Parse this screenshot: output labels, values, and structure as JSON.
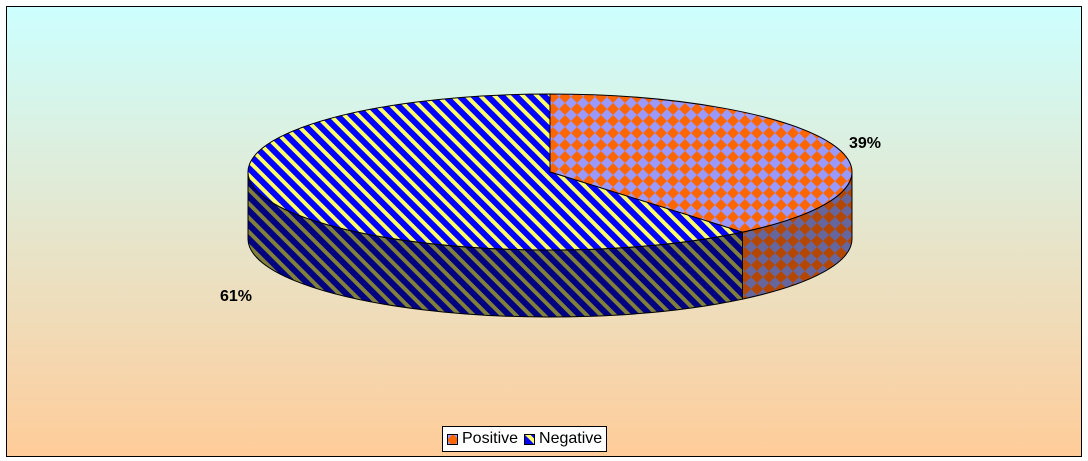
{
  "chart_data": {
    "type": "pie",
    "style": "3d",
    "slices": [
      {
        "label": "Positive",
        "value": 39,
        "display": "39%",
        "pattern": "diamond-checker",
        "colors": [
          "#9999ff",
          "#ff6600"
        ]
      },
      {
        "label": "Negative",
        "value": 61,
        "display": "61%",
        "pattern": "diagonal-stripes",
        "colors": [
          "#0000ff",
          "#ffff66"
        ]
      }
    ],
    "legend": {
      "position": "bottom",
      "entries": [
        "Positive",
        "Negative"
      ]
    },
    "background": {
      "gradient": [
        "#ccffff",
        "#ffcc99"
      ]
    }
  }
}
